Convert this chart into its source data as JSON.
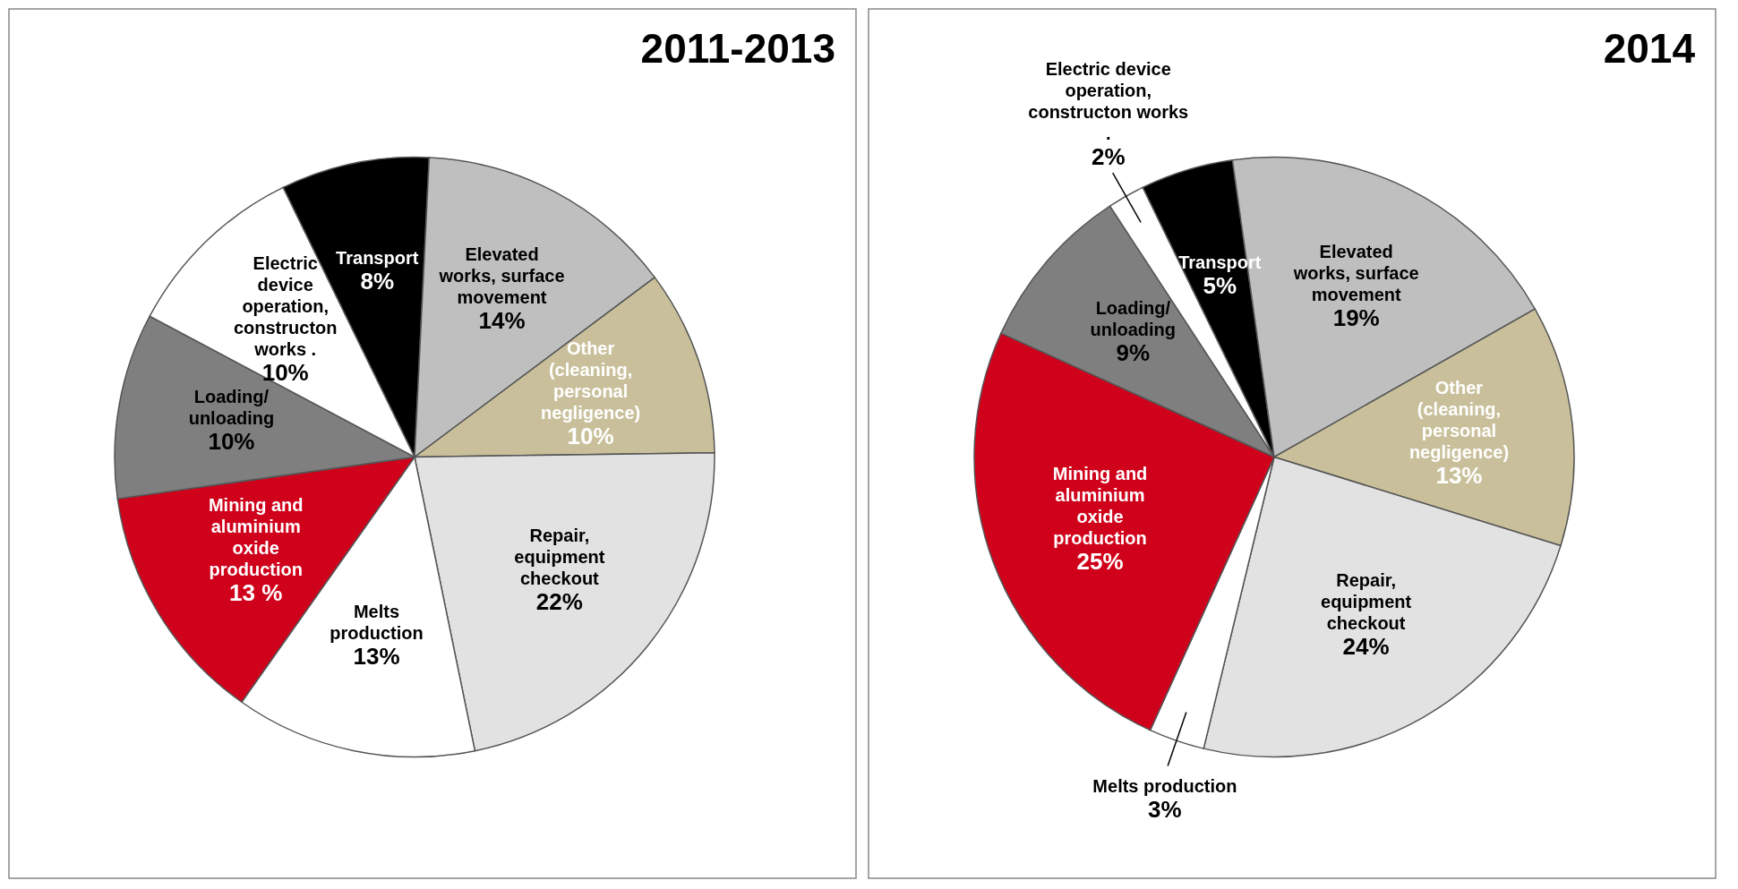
{
  "chart_data": [
    {
      "type": "pie",
      "title": "2011-2013",
      "categories": [
        "Transport",
        "Elevated works, surface movement",
        "Other (cleaning, personal negligence)",
        "Repair, equipment checkout",
        "Melts production",
        "Mining and aluminium oxide production",
        "Loading/ unloading",
        "Electric device operation, constructon works ."
      ],
      "values": [
        8,
        14,
        10,
        22,
        13,
        13,
        10,
        10
      ],
      "value_labels": [
        "8%",
        "14%",
        "10%",
        "22%",
        "13%",
        "13 %",
        "10%",
        "10%"
      ],
      "colors": [
        "#000000",
        "#bfbfbf",
        "#c9c09b",
        "#e2e2e2",
        "#ffffff",
        "#d0021b",
        "#7f7f7f",
        "#ffffff"
      ]
    },
    {
      "type": "pie",
      "title": "2014",
      "categories": [
        "Transport",
        "Elevated works, surface movement",
        "Other (cleaning, personal negligence)",
        "Repair, equipment checkout",
        "Melts production",
        "Mining and aluminium oxide production",
        "Loading/ unloading",
        "Electric device operation, constructon works ."
      ],
      "values": [
        5,
        19,
        13,
        24,
        3,
        25,
        9,
        2
      ],
      "value_labels": [
        "5%",
        "19%",
        "13%",
        "24%",
        "3%",
        "25%",
        "9%",
        "2%"
      ],
      "colors": [
        "#000000",
        "#bfbfbf",
        "#c9c09b",
        "#e2e2e2",
        "#ffffff",
        "#d0021b",
        "#7f7f7f",
        "#ffffff"
      ]
    }
  ]
}
